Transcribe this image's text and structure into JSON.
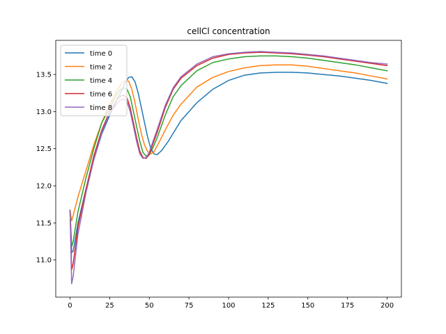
{
  "chart_data": {
    "type": "line",
    "title": "cellCl concentration",
    "xlabel": "",
    "ylabel": "",
    "xlim": [
      -9,
      209
    ],
    "ylim": [
      10.5,
      13.96
    ],
    "xticks": [
      0,
      25,
      50,
      75,
      100,
      125,
      150,
      175,
      200
    ],
    "yticks": [
      11.0,
      11.5,
      12.0,
      12.5,
      13.0,
      13.5
    ],
    "ytick_labels": [
      "11.0",
      "11.5",
      "12.0",
      "12.5",
      "13.0",
      "13.5"
    ],
    "grid": false,
    "legend_position": "top-left",
    "series": [
      {
        "name": "time 0",
        "color": "#1f77b4",
        "x": [
          0,
          1,
          2,
          5,
          10,
          15,
          20,
          25,
          30,
          33,
          35,
          37,
          39,
          41,
          43,
          45,
          47,
          49,
          51,
          53,
          55,
          58,
          62,
          70,
          80,
          90,
          100,
          110,
          120,
          130,
          140,
          150,
          160,
          170,
          180,
          190,
          200
        ],
        "y": [
          11.67,
          11.1,
          11.12,
          11.5,
          11.95,
          12.35,
          12.7,
          12.95,
          13.18,
          13.3,
          13.4,
          13.46,
          13.47,
          13.4,
          13.25,
          13.05,
          12.85,
          12.65,
          12.5,
          12.43,
          12.42,
          12.48,
          12.6,
          12.88,
          13.12,
          13.3,
          13.42,
          13.49,
          13.52,
          13.53,
          13.53,
          13.52,
          13.5,
          13.48,
          13.45,
          13.42,
          13.38
        ]
      },
      {
        "name": "time 2",
        "color": "#ff7f0e",
        "x": [
          0,
          1,
          2,
          5,
          10,
          15,
          20,
          25,
          30,
          33,
          35,
          37,
          39,
          41,
          43,
          45,
          47,
          49,
          51,
          53,
          56,
          60,
          65,
          70,
          80,
          90,
          100,
          110,
          120,
          130,
          140,
          150,
          160,
          170,
          180,
          190,
          200
        ],
        "y": [
          11.67,
          11.53,
          11.6,
          11.85,
          12.2,
          12.55,
          12.85,
          13.1,
          13.3,
          13.39,
          13.42,
          13.41,
          13.3,
          13.12,
          12.9,
          12.7,
          12.55,
          12.46,
          12.43,
          12.46,
          12.58,
          12.75,
          12.95,
          13.1,
          13.33,
          13.46,
          13.54,
          13.59,
          13.62,
          13.63,
          13.63,
          13.61,
          13.58,
          13.55,
          13.52,
          13.48,
          13.44
        ]
      },
      {
        "name": "time 4",
        "color": "#2ca02c",
        "x": [
          0,
          1,
          2,
          5,
          10,
          15,
          20,
          25,
          30,
          32,
          34,
          36,
          38,
          40,
          42,
          44,
          46,
          48,
          50,
          52,
          55,
          60,
          65,
          70,
          80,
          90,
          100,
          110,
          120,
          130,
          140,
          150,
          160,
          170,
          180,
          190,
          200
        ],
        "y": [
          11.67,
          11.18,
          11.25,
          11.65,
          12.1,
          12.5,
          12.85,
          13.05,
          13.25,
          13.3,
          13.32,
          13.3,
          13.2,
          13.0,
          12.8,
          12.6,
          12.45,
          12.4,
          12.42,
          12.5,
          12.65,
          12.95,
          13.2,
          13.35,
          13.55,
          13.66,
          13.71,
          13.74,
          13.75,
          13.75,
          13.74,
          13.72,
          13.69,
          13.66,
          13.63,
          13.59,
          13.55
        ]
      },
      {
        "name": "time 6",
        "color": "#d62728",
        "x": [
          0,
          1,
          2,
          5,
          10,
          15,
          20,
          25,
          30,
          32,
          34,
          36,
          38,
          40,
          42,
          44,
          46,
          48,
          50,
          52,
          55,
          60,
          65,
          70,
          80,
          90,
          100,
          110,
          120,
          130,
          140,
          150,
          160,
          170,
          180,
          190,
          200
        ],
        "y": [
          11.67,
          10.87,
          10.95,
          11.45,
          11.95,
          12.4,
          12.75,
          13.0,
          13.17,
          13.21,
          13.22,
          13.18,
          13.05,
          12.85,
          12.65,
          12.47,
          12.38,
          12.37,
          12.42,
          12.55,
          12.72,
          13.05,
          13.3,
          13.45,
          13.62,
          13.72,
          13.77,
          13.79,
          13.8,
          13.79,
          13.78,
          13.76,
          13.74,
          13.71,
          13.68,
          13.65,
          13.62
        ]
      },
      {
        "name": "time 8",
        "color": "#9467bd",
        "x": [
          0,
          1,
          2,
          5,
          10,
          15,
          20,
          25,
          30,
          32,
          34,
          36,
          38,
          40,
          42,
          44,
          46,
          48,
          50,
          52,
          55,
          60,
          65,
          70,
          80,
          90,
          100,
          110,
          120,
          130,
          140,
          150,
          160,
          170,
          180,
          190,
          200
        ],
        "y": [
          11.67,
          10.68,
          10.78,
          11.35,
          11.9,
          12.35,
          12.72,
          12.98,
          13.12,
          13.16,
          13.17,
          13.13,
          13.0,
          12.8,
          12.6,
          12.43,
          12.37,
          12.38,
          12.45,
          12.58,
          12.76,
          13.08,
          13.32,
          13.47,
          13.64,
          13.74,
          13.78,
          13.8,
          13.81,
          13.8,
          13.79,
          13.77,
          13.75,
          13.72,
          13.69,
          13.66,
          13.64
        ]
      }
    ]
  }
}
